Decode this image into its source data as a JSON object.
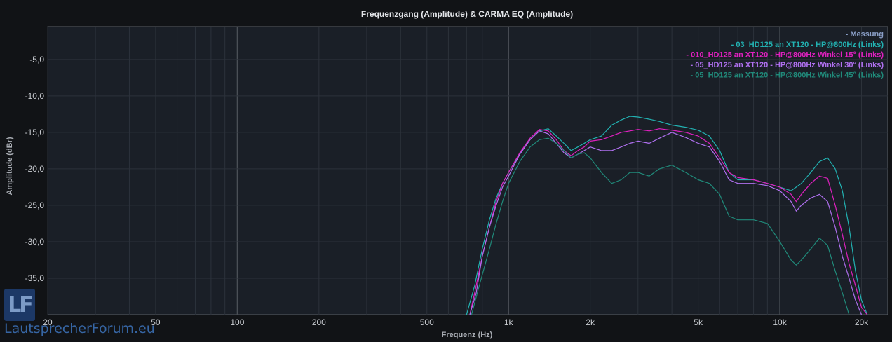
{
  "chart_data": {
    "type": "line",
    "title": "Frequenzgang (Amplitude) & CARMA EQ (Amplitude)",
    "xlabel": "Frequenz (Hz)",
    "ylabel": "Amplitude (dBr)",
    "x_scale": "log",
    "xlim": [
      20,
      25000
    ],
    "ylim": [
      -40,
      -0.5
    ],
    "x_ticks": [
      {
        "value": 20,
        "label": "20"
      },
      {
        "value": 50,
        "label": "50"
      },
      {
        "value": 100,
        "label": "100"
      },
      {
        "value": 200,
        "label": "200"
      },
      {
        "value": 500,
        "label": "500"
      },
      {
        "value": 1000,
        "label": "1k"
      },
      {
        "value": 2000,
        "label": "2k"
      },
      {
        "value": 5000,
        "label": "5k"
      },
      {
        "value": 10000,
        "label": "10k"
      },
      {
        "value": 20000,
        "label": "20k"
      }
    ],
    "y_ticks": [
      {
        "value": -5,
        "label": "-5,0"
      },
      {
        "value": -10,
        "label": "-10,0"
      },
      {
        "value": -15,
        "label": "-15,0"
      },
      {
        "value": -20,
        "label": "-20,0"
      },
      {
        "value": -25,
        "label": "-25,0"
      },
      {
        "value": -30,
        "label": "-30,0"
      },
      {
        "value": -35,
        "label": "-35,0"
      }
    ],
    "grid": true,
    "legend_position": "top-right",
    "legend_header": "- Messung",
    "series": [
      {
        "name": "- 03_HD125 an XT120 - HP@800Hz (Links)",
        "color": "#22b2b2",
        "points": [
          [
            700,
            -40
          ],
          [
            750,
            -36
          ],
          [
            800,
            -31
          ],
          [
            850,
            -27
          ],
          [
            900,
            -24
          ],
          [
            950,
            -22
          ],
          [
            1000,
            -20.5
          ],
          [
            1100,
            -18
          ],
          [
            1200,
            -16
          ],
          [
            1300,
            -14.8
          ],
          [
            1400,
            -14.5
          ],
          [
            1500,
            -15.5
          ],
          [
            1600,
            -16.5
          ],
          [
            1700,
            -17.5
          ],
          [
            1800,
            -17
          ],
          [
            1900,
            -16.5
          ],
          [
            2000,
            -16
          ],
          [
            2200,
            -15.5
          ],
          [
            2400,
            -14
          ],
          [
            2600,
            -13.3
          ],
          [
            2800,
            -12.8
          ],
          [
            3000,
            -12.9
          ],
          [
            3300,
            -13.2
          ],
          [
            3600,
            -13.5
          ],
          [
            4000,
            -14
          ],
          [
            4500,
            -14.3
          ],
          [
            5000,
            -14.7
          ],
          [
            5500,
            -15.5
          ],
          [
            6000,
            -17.5
          ],
          [
            6500,
            -20.5
          ],
          [
            7000,
            -21.5
          ],
          [
            8000,
            -21.5
          ],
          [
            9000,
            -22
          ],
          [
            10000,
            -22.5
          ],
          [
            11000,
            -23
          ],
          [
            12000,
            -22
          ],
          [
            13000,
            -20.5
          ],
          [
            14000,
            -19
          ],
          [
            15000,
            -18.5
          ],
          [
            16000,
            -20
          ],
          [
            17000,
            -23
          ],
          [
            18000,
            -28
          ],
          [
            19000,
            -34
          ],
          [
            20000,
            -38
          ],
          [
            21000,
            -40
          ]
        ]
      },
      {
        "name": "- 010_HD125 an XT120 - HP@800Hz Winkel 15° (Links)",
        "color": "#e020c0",
        "points": [
          [
            720,
            -40
          ],
          [
            750,
            -37
          ],
          [
            800,
            -32
          ],
          [
            850,
            -28
          ],
          [
            900,
            -24.5
          ],
          [
            950,
            -22
          ],
          [
            1000,
            -20.5
          ],
          [
            1100,
            -17.8
          ],
          [
            1200,
            -15.8
          ],
          [
            1300,
            -14.6
          ],
          [
            1400,
            -14.8
          ],
          [
            1500,
            -16
          ],
          [
            1600,
            -17.5
          ],
          [
            1700,
            -18.2
          ],
          [
            1800,
            -17.5
          ],
          [
            1900,
            -17
          ],
          [
            2000,
            -16.2
          ],
          [
            2200,
            -16
          ],
          [
            2400,
            -15.5
          ],
          [
            2600,
            -15
          ],
          [
            2800,
            -14.8
          ],
          [
            3000,
            -14.6
          ],
          [
            3300,
            -14.8
          ],
          [
            3600,
            -14.5
          ],
          [
            4000,
            -14.7
          ],
          [
            4500,
            -15
          ],
          [
            5000,
            -15.5
          ],
          [
            5500,
            -16.5
          ],
          [
            6000,
            -18.5
          ],
          [
            6500,
            -20.5
          ],
          [
            7000,
            -21.2
          ],
          [
            8000,
            -21.5
          ],
          [
            9000,
            -22
          ],
          [
            10000,
            -22.5
          ],
          [
            11000,
            -23.5
          ],
          [
            11500,
            -24.5
          ],
          [
            12000,
            -23.5
          ],
          [
            13000,
            -22
          ],
          [
            14000,
            -21
          ],
          [
            15000,
            -21.3
          ],
          [
            16000,
            -25
          ],
          [
            17000,
            -29
          ],
          [
            18000,
            -33
          ],
          [
            19000,
            -36
          ],
          [
            20000,
            -39
          ],
          [
            21000,
            -40
          ]
        ]
      },
      {
        "name": "- 05_HD125 an XT120 - HP@800Hz Winkel 30° (Links)",
        "color": "#b070f0",
        "points": [
          [
            720,
            -40
          ],
          [
            760,
            -37
          ],
          [
            800,
            -32
          ],
          [
            850,
            -28
          ],
          [
            900,
            -25
          ],
          [
            950,
            -22.5
          ],
          [
            1000,
            -21
          ],
          [
            1100,
            -18
          ],
          [
            1200,
            -16
          ],
          [
            1300,
            -14.8
          ],
          [
            1400,
            -15.2
          ],
          [
            1500,
            -16.5
          ],
          [
            1600,
            -17.8
          ],
          [
            1700,
            -18.5
          ],
          [
            1800,
            -18
          ],
          [
            1900,
            -17.5
          ],
          [
            2000,
            -17
          ],
          [
            2200,
            -17.5
          ],
          [
            2400,
            -17.5
          ],
          [
            2600,
            -17
          ],
          [
            2800,
            -16.5
          ],
          [
            3000,
            -16.2
          ],
          [
            3300,
            -16.5
          ],
          [
            3600,
            -15.8
          ],
          [
            4000,
            -15
          ],
          [
            4500,
            -15.7
          ],
          [
            5000,
            -16.5
          ],
          [
            5500,
            -17
          ],
          [
            6000,
            -19
          ],
          [
            6500,
            -21.5
          ],
          [
            7000,
            -22
          ],
          [
            8000,
            -22
          ],
          [
            9000,
            -22.3
          ],
          [
            10000,
            -23
          ],
          [
            11000,
            -24.5
          ],
          [
            11500,
            -25.8
          ],
          [
            12000,
            -25
          ],
          [
            13000,
            -24
          ],
          [
            14000,
            -23.5
          ],
          [
            15000,
            -24.5
          ],
          [
            16000,
            -28
          ],
          [
            17000,
            -32
          ],
          [
            18000,
            -35
          ],
          [
            19000,
            -38
          ],
          [
            20000,
            -40
          ]
        ]
      },
      {
        "name": "- 05_HD125 an XT120 - HP@800Hz Winkel 45° (Links)",
        "color": "#208a7a",
        "points": [
          [
            730,
            -40
          ],
          [
            780,
            -36
          ],
          [
            850,
            -31
          ],
          [
            900,
            -27.5
          ],
          [
            950,
            -24.5
          ],
          [
            1000,
            -22
          ],
          [
            1100,
            -19
          ],
          [
            1200,
            -17
          ],
          [
            1300,
            -16
          ],
          [
            1400,
            -15.8
          ],
          [
            1500,
            -16.5
          ],
          [
            1600,
            -17.5
          ],
          [
            1700,
            -18.5
          ],
          [
            1800,
            -18
          ],
          [
            1900,
            -17.8
          ],
          [
            2000,
            -18.5
          ],
          [
            2200,
            -20.5
          ],
          [
            2400,
            -22
          ],
          [
            2600,
            -21.5
          ],
          [
            2800,
            -20.5
          ],
          [
            3000,
            -20.5
          ],
          [
            3300,
            -21
          ],
          [
            3600,
            -20
          ],
          [
            4000,
            -19.5
          ],
          [
            4500,
            -20.5
          ],
          [
            5000,
            -21.5
          ],
          [
            5500,
            -22
          ],
          [
            6000,
            -23.5
          ],
          [
            6500,
            -26.5
          ],
          [
            7000,
            -27
          ],
          [
            8000,
            -27
          ],
          [
            9000,
            -27.5
          ],
          [
            10000,
            -30
          ],
          [
            11000,
            -32.5
          ],
          [
            11500,
            -33.2
          ],
          [
            12000,
            -32.5
          ],
          [
            13000,
            -31
          ],
          [
            14000,
            -29.5
          ],
          [
            15000,
            -30.5
          ],
          [
            16000,
            -34
          ],
          [
            17000,
            -37
          ],
          [
            18000,
            -40
          ]
        ]
      }
    ]
  },
  "watermark": {
    "logo": "LF",
    "text": "LautsprecherForum.eu"
  }
}
